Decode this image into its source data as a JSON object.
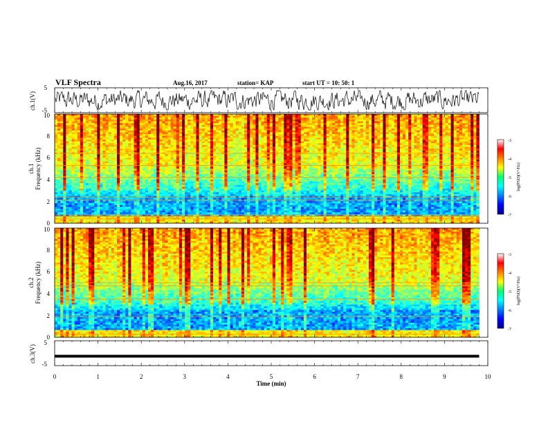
{
  "header": {
    "title": "VLF Spectra",
    "date": "Aug.16, 2017",
    "station": "station= KAP",
    "start": "start  UT =   10: 50: 1"
  },
  "chart_data": [
    {
      "type": "line",
      "name": "ch1-waveform",
      "ylabel": "ch.1(V)",
      "ylim": [
        -5,
        5
      ],
      "ytick_labels": [
        "5",
        "-5"
      ],
      "xlim": [
        0,
        10
      ]
    },
    {
      "type": "heatmap",
      "name": "ch1-spectrogram",
      "ylabel_top": "ch.1",
      "ylabel": "Frequency  (kHz)",
      "ylim": [
        0,
        10
      ],
      "ytick_labels": [
        "0",
        "2",
        "4",
        "6",
        "8",
        "10"
      ],
      "xlim": [
        0,
        9.8
      ],
      "colorbar": {
        "label": "log(PSD)(V²/Hz)",
        "range": [
          -7,
          -3
        ],
        "tick_labels": [
          "-3",
          "-4",
          "-5",
          "-6",
          "-7"
        ]
      }
    },
    {
      "type": "heatmap",
      "name": "ch2-spectrogram",
      "ylabel_top": "ch.2",
      "ylabel": "Frequency  (kHz)",
      "ylim": [
        0,
        10
      ],
      "ytick_labels": [
        "0",
        "2",
        "4",
        "6",
        "8",
        "10"
      ],
      "xlim": [
        0,
        9.8
      ],
      "colorbar": {
        "label": "log(PSD)(V²/Hz)",
        "range": [
          -7,
          -3
        ],
        "tick_labels": [
          "-3",
          "-4",
          "-5",
          "-6",
          "-7"
        ]
      }
    },
    {
      "type": "line",
      "name": "ch3-waveform",
      "ylabel": "ch.3(V)",
      "ylim": [
        -5,
        5
      ],
      "ytick_labels": [
        "5",
        "-5"
      ],
      "x": [
        0,
        9.8
      ],
      "y": [
        -1.2,
        -1.2
      ],
      "xlabel": "Time  (min)",
      "xlim": [
        0,
        10
      ],
      "xtick_labels": [
        "0",
        "1",
        "2",
        "3",
        "4",
        "5",
        "6",
        "7",
        "8",
        "9",
        "10"
      ]
    }
  ]
}
